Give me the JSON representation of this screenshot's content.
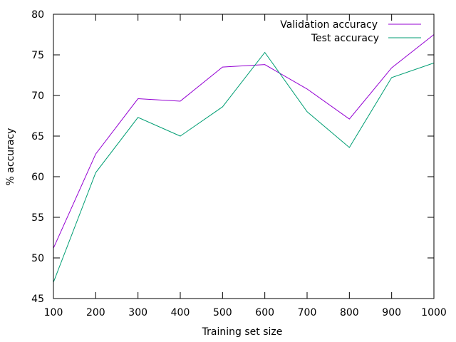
{
  "chart_data": {
    "type": "line",
    "title": "",
    "xlabel": "Training set size",
    "ylabel": "% accuracy",
    "x": [
      100,
      200,
      300,
      400,
      500,
      600,
      700,
      800,
      900,
      1000
    ],
    "xlim": [
      100,
      1000
    ],
    "ylim": [
      45,
      80
    ],
    "x_ticks": [
      "100",
      "200",
      "300",
      "400",
      "500",
      "600",
      "700",
      "800",
      "900",
      "1000"
    ],
    "y_ticks": [
      "45",
      "50",
      "55",
      "60",
      "65",
      "70",
      "75",
      "80"
    ],
    "grid": false,
    "legend_position": "top-right",
    "series": [
      {
        "name": "Validation accuracy",
        "color": "#9400d3",
        "values": [
          51.2,
          62.8,
          69.6,
          69.3,
          73.5,
          73.8,
          70.8,
          67.1,
          73.4,
          77.5
        ]
      },
      {
        "name": "Test accuracy",
        "color": "#009e73",
        "values": [
          47.0,
          60.5,
          67.3,
          65.0,
          68.6,
          75.3,
          68.0,
          63.6,
          72.2,
          74.0
        ]
      }
    ]
  }
}
